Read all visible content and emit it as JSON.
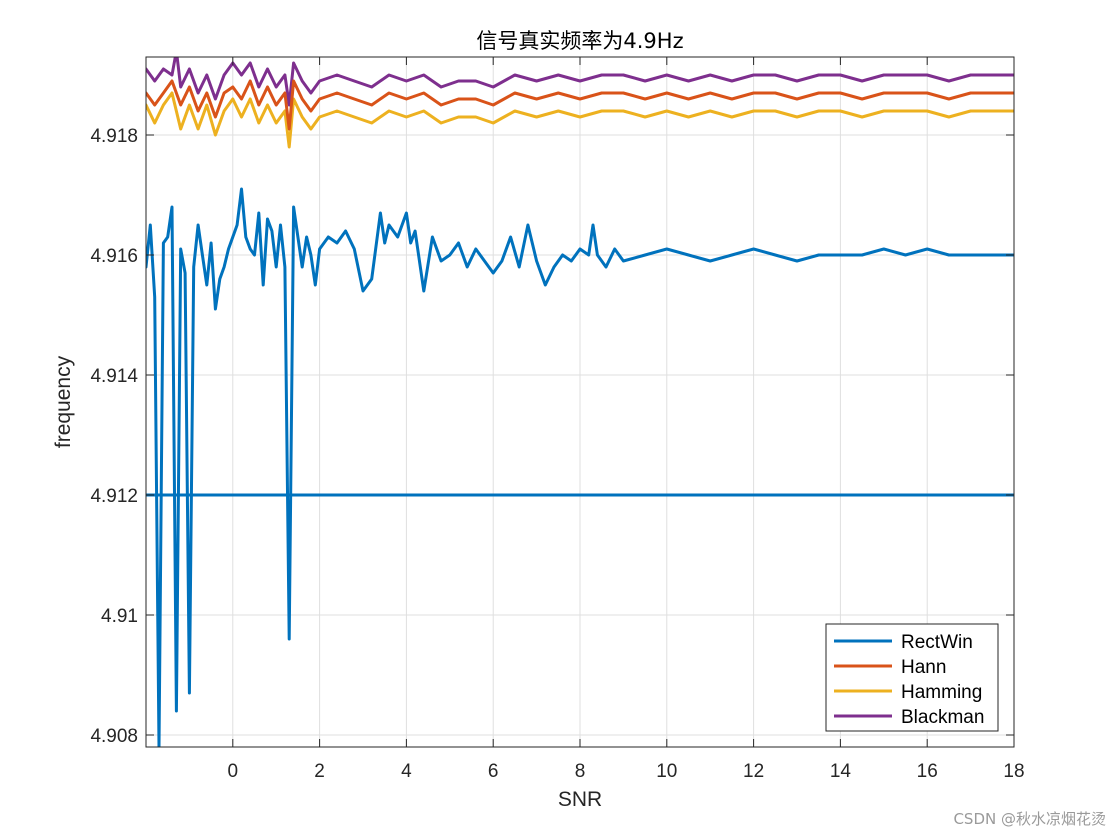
{
  "chart_data": {
    "type": "line",
    "title": "信号真实频率为4.9Hz",
    "xlabel": "SNR",
    "ylabel": "frequency",
    "xlim": [
      -2,
      18
    ],
    "ylim": [
      4.9078,
      4.9193
    ],
    "xticks": [
      0,
      2,
      4,
      6,
      8,
      10,
      12,
      14,
      16,
      18
    ],
    "xtick_labels": [
      "0",
      "2",
      "4",
      "6",
      "8",
      "10",
      "12",
      "14",
      "16",
      "18"
    ],
    "yticks": [
      4.908,
      4.91,
      4.912,
      4.914,
      4.916,
      4.918
    ],
    "ytick_labels": [
      "4.908",
      "4.91",
      "4.912",
      "4.914",
      "4.916",
      "4.918"
    ],
    "grid": true,
    "legend_position": "bottom-right",
    "reference_line": {
      "y": 4.912,
      "color": "#0072BD"
    },
    "series": [
      {
        "name": "RectWin",
        "color": "#0072BD",
        "x": [
          -2,
          -1.9,
          -1.8,
          -1.7,
          -1.6,
          -1.5,
          -1.4,
          -1.3,
          -1.2,
          -1.1,
          -1.0,
          -0.9,
          -0.8,
          -0.7,
          -0.6,
          -0.5,
          -0.4,
          -0.3,
          -0.2,
          -0.1,
          0.0,
          0.1,
          0.2,
          0.3,
          0.4,
          0.5,
          0.6,
          0.7,
          0.8,
          0.9,
          1.0,
          1.1,
          1.2,
          1.3,
          1.4,
          1.5,
          1.6,
          1.7,
          1.8,
          1.9,
          2.0,
          2.2,
          2.4,
          2.6,
          2.8,
          3.0,
          3.2,
          3.4,
          3.5,
          3.6,
          3.8,
          4.0,
          4.1,
          4.2,
          4.4,
          4.6,
          4.8,
          5.0,
          5.2,
          5.4,
          5.6,
          5.8,
          6.0,
          6.2,
          6.4,
          6.6,
          6.8,
          7.0,
          7.2,
          7.4,
          7.6,
          7.8,
          8.0,
          8.2,
          8.3,
          8.4,
          8.6,
          8.8,
          9.0,
          9.5,
          10.0,
          10.5,
          11.0,
          11.5,
          12.0,
          12.5,
          13.0,
          13.5,
          14.0,
          14.5,
          15.0,
          15.5,
          16.0,
          16.5,
          17.0,
          17.5,
          18.0
        ],
        "y": [
          4.9158,
          4.9165,
          4.9153,
          4.9078,
          4.9162,
          4.9163,
          4.9168,
          4.9084,
          4.9161,
          4.9157,
          4.9087,
          4.9158,
          4.9165,
          4.916,
          4.9155,
          4.9162,
          4.9151,
          4.9156,
          4.9158,
          4.9161,
          4.9163,
          4.9165,
          4.9171,
          4.9163,
          4.9161,
          4.916,
          4.9167,
          4.9155,
          4.9166,
          4.9164,
          4.9158,
          4.9165,
          4.9158,
          4.9096,
          4.9168,
          4.9163,
          4.9158,
          4.9163,
          4.916,
          4.9155,
          4.9161,
          4.9163,
          4.9162,
          4.9164,
          4.9161,
          4.9154,
          4.9156,
          4.9167,
          4.9162,
          4.9165,
          4.9163,
          4.9167,
          4.9162,
          4.9164,
          4.9154,
          4.9163,
          4.9159,
          4.916,
          4.9162,
          4.9158,
          4.9161,
          4.9159,
          4.9157,
          4.9159,
          4.9163,
          4.9158,
          4.9165,
          4.9159,
          4.9155,
          4.9158,
          4.916,
          4.9159,
          4.9161,
          4.916,
          4.9165,
          4.916,
          4.9158,
          4.9161,
          4.9159,
          4.916,
          4.9161,
          4.916,
          4.9159,
          4.916,
          4.9161,
          4.916,
          4.9159,
          4.916,
          4.916,
          4.916,
          4.9161,
          4.916,
          4.9161,
          4.916,
          4.916,
          4.916,
          4.916
        ]
      },
      {
        "name": "Hann",
        "color": "#D95319",
        "x": [
          -2,
          -1.8,
          -1.6,
          -1.4,
          -1.2,
          -1.0,
          -0.8,
          -0.6,
          -0.4,
          -0.2,
          0.0,
          0.2,
          0.4,
          0.6,
          0.8,
          1.0,
          1.2,
          1.3,
          1.4,
          1.6,
          1.8,
          2.0,
          2.4,
          2.8,
          3.2,
          3.6,
          4.0,
          4.4,
          4.8,
          5.2,
          5.6,
          6.0,
          6.5,
          7.0,
          7.5,
          8.0,
          8.5,
          9.0,
          9.5,
          10.0,
          10.5,
          11.0,
          11.5,
          12.0,
          12.5,
          13.0,
          13.5,
          14.0,
          14.5,
          15.0,
          15.5,
          16.0,
          16.5,
          17.0,
          17.5,
          18.0
        ],
        "y": [
          4.9187,
          4.9185,
          4.9187,
          4.9189,
          4.9185,
          4.9188,
          4.9184,
          4.9187,
          4.9183,
          4.9187,
          4.9188,
          4.9186,
          4.9189,
          4.9185,
          4.9188,
          4.9185,
          4.9187,
          4.9181,
          4.9189,
          4.9186,
          4.9184,
          4.9186,
          4.9187,
          4.9186,
          4.9185,
          4.9187,
          4.9186,
          4.9187,
          4.9185,
          4.9186,
          4.9186,
          4.9185,
          4.9187,
          4.9186,
          4.9187,
          4.9186,
          4.9187,
          4.9187,
          4.9186,
          4.9187,
          4.9186,
          4.9187,
          4.9186,
          4.9187,
          4.9187,
          4.9186,
          4.9187,
          4.9187,
          4.9186,
          4.9187,
          4.9187,
          4.9187,
          4.9186,
          4.9187,
          4.9187,
          4.9187
        ]
      },
      {
        "name": "Hamming",
        "color": "#EDB120",
        "x": [
          -2,
          -1.8,
          -1.6,
          -1.4,
          -1.2,
          -1.0,
          -0.8,
          -0.6,
          -0.4,
          -0.2,
          0.0,
          0.2,
          0.4,
          0.6,
          0.8,
          1.0,
          1.2,
          1.3,
          1.4,
          1.6,
          1.8,
          2.0,
          2.4,
          2.8,
          3.2,
          3.6,
          4.0,
          4.4,
          4.8,
          5.2,
          5.6,
          6.0,
          6.5,
          7.0,
          7.5,
          8.0,
          8.5,
          9.0,
          9.5,
          10.0,
          10.5,
          11.0,
          11.5,
          12.0,
          12.5,
          13.0,
          13.5,
          14.0,
          14.5,
          15.0,
          15.5,
          16.0,
          16.5,
          17.0,
          17.5,
          18.0
        ],
        "y": [
          4.9185,
          4.9182,
          4.9185,
          4.9187,
          4.9181,
          4.9185,
          4.9181,
          4.9185,
          4.918,
          4.9184,
          4.9186,
          4.9183,
          4.9186,
          4.9182,
          4.9185,
          4.9182,
          4.9184,
          4.9178,
          4.9186,
          4.9183,
          4.9181,
          4.9183,
          4.9184,
          4.9183,
          4.9182,
          4.9184,
          4.9183,
          4.9184,
          4.9182,
          4.9183,
          4.9183,
          4.9182,
          4.9184,
          4.9183,
          4.9184,
          4.9183,
          4.9184,
          4.9184,
          4.9183,
          4.9184,
          4.9183,
          4.9184,
          4.9183,
          4.9184,
          4.9184,
          4.9183,
          4.9184,
          4.9184,
          4.9183,
          4.9184,
          4.9184,
          4.9184,
          4.9183,
          4.9184,
          4.9184,
          4.9184
        ]
      },
      {
        "name": "Blackman",
        "color": "#7E2F8E",
        "x": [
          -2,
          -1.8,
          -1.6,
          -1.4,
          -1.3,
          -1.2,
          -1.0,
          -0.8,
          -0.6,
          -0.4,
          -0.2,
          0.0,
          0.2,
          0.4,
          0.6,
          0.8,
          1.0,
          1.2,
          1.3,
          1.4,
          1.6,
          1.8,
          2.0,
          2.4,
          2.8,
          3.2,
          3.6,
          4.0,
          4.4,
          4.8,
          5.2,
          5.6,
          6.0,
          6.5,
          7.0,
          7.5,
          8.0,
          8.5,
          9.0,
          9.5,
          10.0,
          10.5,
          11.0,
          11.5,
          12.0,
          12.5,
          13.0,
          13.5,
          14.0,
          14.5,
          15.0,
          15.5,
          16.0,
          16.5,
          17.0,
          17.5,
          18.0
        ],
        "y": [
          4.9191,
          4.9189,
          4.9191,
          4.919,
          4.9194,
          4.9188,
          4.9191,
          4.9187,
          4.919,
          4.9186,
          4.919,
          4.9192,
          4.919,
          4.9192,
          4.9188,
          4.9191,
          4.9188,
          4.919,
          4.9185,
          4.9192,
          4.9189,
          4.9187,
          4.9189,
          4.919,
          4.9189,
          4.9188,
          4.919,
          4.9189,
          4.919,
          4.9188,
          4.9189,
          4.9189,
          4.9188,
          4.919,
          4.9189,
          4.919,
          4.9189,
          4.919,
          4.919,
          4.9189,
          4.919,
          4.9189,
          4.919,
          4.9189,
          4.919,
          4.919,
          4.9189,
          4.919,
          4.919,
          4.9189,
          4.919,
          4.919,
          4.919,
          4.9189,
          4.919,
          4.919,
          4.919
        ]
      }
    ]
  },
  "watermark": "CSDN @秋水凉烟花烫"
}
